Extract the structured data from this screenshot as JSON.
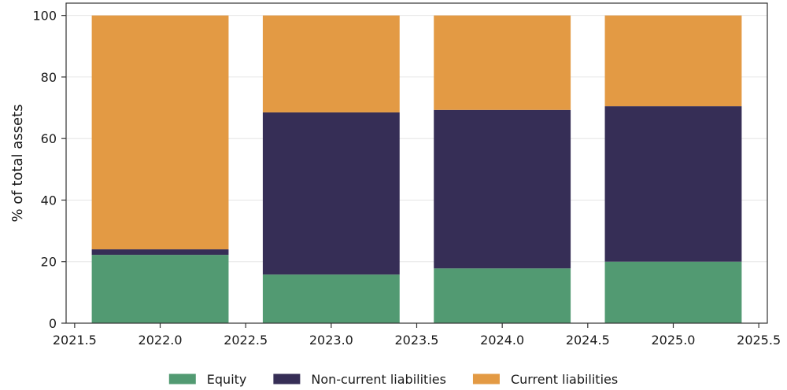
{
  "chart_data": {
    "type": "bar",
    "stacked": true,
    "x": [
      2022.0,
      2023.0,
      2024.0,
      2025.0
    ],
    "bar_width": 0.8,
    "series": [
      {
        "name": "Equity",
        "color": "#529a72",
        "values": [
          22.2,
          15.8,
          17.8,
          20.0
        ]
      },
      {
        "name": "Non-current liabilities",
        "color": "#362e56",
        "values": [
          1.8,
          52.7,
          51.5,
          50.5
        ]
      },
      {
        "name": "Current liabilities",
        "color": "#e39a44",
        "values": [
          76.0,
          31.5,
          30.7,
          29.5
        ]
      }
    ],
    "xlabel": "",
    "ylabel": "% of total assets",
    "xlim": [
      2021.45,
      2025.55
    ],
    "ylim": [
      0,
      104
    ],
    "xticks": [
      2021.5,
      2022.0,
      2022.5,
      2023.0,
      2023.5,
      2024.0,
      2024.5,
      2025.0,
      2025.5
    ],
    "xtick_labels": [
      "2021.5",
      "2022.0",
      "2022.5",
      "2023.0",
      "2023.5",
      "2024.0",
      "2024.5",
      "2025.0",
      "2025.5"
    ],
    "yticks": [
      0,
      20,
      40,
      60,
      80,
      100
    ],
    "ytick_labels": [
      "0",
      "20",
      "40",
      "60",
      "80",
      "100"
    ],
    "grid": "y",
    "legend_position": "bottom-center"
  }
}
